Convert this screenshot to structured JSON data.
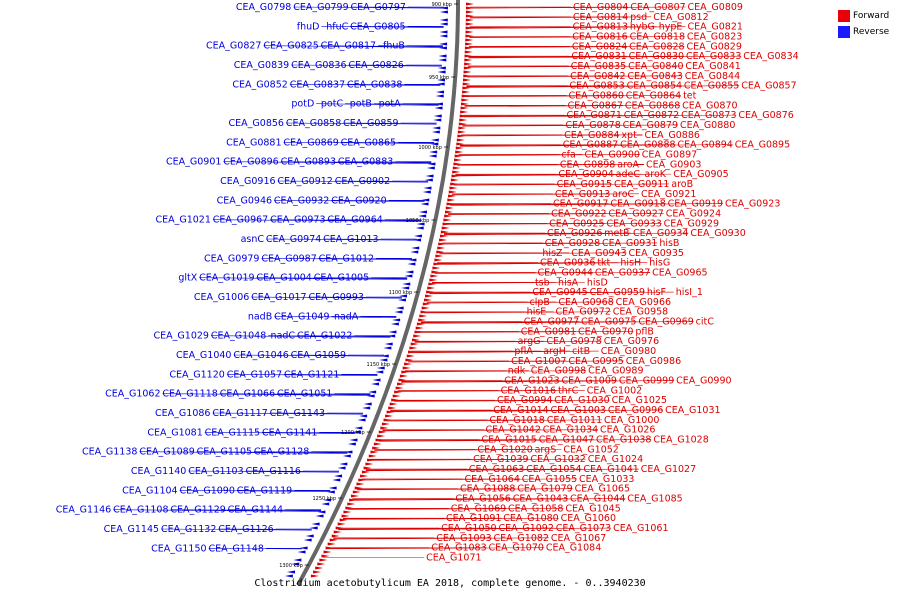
{
  "title": "Clostridium acetobutylicum EA 2018, complete genome. - 0..3940230",
  "legend": {
    "forward_label": "Forward",
    "forward_color": "#e8000b",
    "reverse_label": "Reverse",
    "reverse_color": "#1a1aff"
  },
  "colors": {
    "forward": "#dd0000",
    "reverse": "#0000dd",
    "axis": "#666666"
  },
  "ticks": [
    "900 kbp",
    "950 kbp",
    "1000 kbp",
    "1050 kbp",
    "1100 kbp",
    "1150 kbp",
    "1200 kbp",
    "1250 kbp",
    "1300 kbp"
  ],
  "reverse_labels": [
    "CEA_G0797",
    "CEA_G0799",
    "CEA_G0798",
    "CEA_G0805",
    "hfuC",
    "fhuD",
    "fhuB",
    "CEA_G0817",
    "CEA_G0825",
    "CEA_G0827",
    "CEA_G0826",
    "CEA_G0836",
    "CEA_G0839",
    "CEA_G0838",
    "CEA_G0837",
    "CEA_G0852",
    "potA",
    "potB",
    "potC",
    "potD",
    "CEA_G0859",
    "CEA_G0858",
    "CEA_G0856",
    "CEA_G0865",
    "CEA_G0869",
    "CEA_G0881",
    "CEA_G0883",
    "CEA_G0893",
    "CEA_G0896",
    "CEA_G0901",
    "CEA_G0902",
    "CEA_G0912",
    "CEA_G0916",
    "CEA_G0920",
    "CEA_G0932",
    "CEA_G0946",
    "CEA_G0964",
    "CEA_G0973",
    "CEA_G0967",
    "CEA_G1021",
    "CEA_G1013",
    "CEA_G0974",
    "asnC",
    "CEA_G1012",
    "CEA_G0987",
    "CEA_G0979",
    "CEA_G1005",
    "CEA_G1004",
    "CEA_G1019",
    "gltX",
    "CEA_G0993",
    "CEA_G1017",
    "CEA_G1006",
    "nadA",
    "CEA_G1049",
    "nadB",
    "CEA_G1022",
    "nadC",
    "CEA_G1048",
    "CEA_G1029",
    "CEA_G1059",
    "CEA_G1046",
    "CEA_G1040",
    "CEA_G1121",
    "CEA_G1057",
    "CEA_G1120",
    "CEA_G1051",
    "CEA_G1066",
    "CEA_G1118",
    "CEA_G1062",
    "CEA_G1143",
    "CEA_G1117",
    "CEA_G1086",
    "CEA_G1141",
    "CEA_G1115",
    "CEA_G1081",
    "CEA_G1128",
    "CEA_G1105",
    "CEA_G1089",
    "CEA_G1138",
    "CEA_G1116",
    "CEA_G1103",
    "CEA_G1140",
    "CEA_G1119",
    "CEA_G1090",
    "CEA_G1104",
    "CEA_G1144",
    "CEA_G1129",
    "CEA_G1108",
    "CEA_G1146",
    "CEA_G1126",
    "CEA_G1132",
    "CEA_G1145",
    "CEA_G1148",
    "CEA_G1150"
  ],
  "forward_labels": [
    "CEA_G0804",
    "CEA_G0807",
    "CEA_G0809",
    "CEA_G0814",
    "psd",
    "CEA_G0812",
    "CEA_G0813",
    "hybG",
    "hypE",
    "CEA_G0821",
    "CEA_G0816",
    "CEA_G0818",
    "CEA_G0823",
    "CEA_G0824",
    "CEA_G0828",
    "CEA_G0829",
    "CEA_G0831",
    "CEA_G0830",
    "CEA_G0833",
    "CEA_G0834",
    "CEA_G0835",
    "CEA_G0840",
    "CEA_G0841",
    "CEA_G0842",
    "CEA_G0843",
    "CEA_G0844",
    "CEA_G0853",
    "CEA_G0854",
    "CEA_G0855",
    "CEA_G0857",
    "CEA_G0860",
    "CEA_G0864",
    "tet",
    "CEA_G0867",
    "CEA_G0868",
    "CEA_G0870",
    "CEA_G0871",
    "CEA_G0872",
    "CEA_G0873",
    "CEA_G0876",
    "CEA_G0878",
    "CEA_G0879",
    "CEA_G0880",
    "CEA_G0884",
    "xpt",
    "CEA_G0886",
    "CEA_G0887",
    "CEA_G0888",
    "CEA_G0894",
    "CEA_G0895",
    "cfa",
    "CEA_G0900",
    "CEA_G0897",
    "CEA_G0898",
    "aroA",
    "CEA_G0903",
    "CEA_G0904",
    "adeC",
    "aroK",
    "CEA_G0905",
    "CEA_G0915",
    "CEA_G0911",
    "aroB",
    "CEA_G0913",
    "aroC",
    "CEA_G0921",
    "CEA_G0917",
    "CEA_G0918",
    "CEA_G0919",
    "CEA_G0923",
    "CEA_G0922",
    "CEA_G0927",
    "CEA_G0924",
    "CEA_G0925",
    "CEA_G0933",
    "CEA_G0929",
    "CEA_G0926",
    "metB",
    "CEA_G0934",
    "CEA_G0930",
    "CEA_G0928",
    "CEA_G0931",
    "hisB",
    "hisZ",
    "CEA_G0943",
    "CEA_G0935",
    "CEA_G0936",
    "tkt",
    "hisH",
    "hisG",
    "CEA_G0944",
    "CEA_G0937",
    "CEA_G0965",
    "tsb",
    "hisA",
    "hisD",
    "CEA_G0945",
    "CEA_G0959",
    "hisF",
    "hisI_1",
    "clpB",
    "CEA_G0968",
    "CEA_G0966",
    "hisE",
    "CEA_G0972",
    "CEA_G0958",
    "CEA_G0977",
    "CEA_G0975",
    "CEA_G0969",
    "citC",
    "CEA_G0981",
    "CEA_G0970",
    "pflB",
    "argG",
    "CEA_G0978",
    "CEA_G0976",
    "pflA",
    "argH",
    "citB",
    "CEA_G0980",
    "CEA_G1007",
    "CEA_G0995",
    "CEA_G0986",
    "ndk",
    "CEA_G0998",
    "CEA_G0989",
    "CEA_G1023",
    "CEA_G1009",
    "CEA_G0999",
    "CEA_G0990",
    "CEA_G1016",
    "thrC",
    "CEA_G1002",
    "CEA_G0994",
    "CEA_G1030",
    "CEA_G1025",
    "CEA_G1014",
    "CEA_G1003",
    "CEA_G0996",
    "CEA_G1031",
    "CEA_G1018",
    "CEA_G1011",
    "CEA_G1000",
    "CEA_G1042",
    "CEA_G1034",
    "CEA_G1026",
    "CEA_G1015",
    "CEA_G1047",
    "CEA_G1038",
    "CEA_G1028",
    "CEA_G1020",
    "argS",
    "CEA_G1052",
    "CEA_G1039",
    "CEA_G1032",
    "CEA_G1024",
    "CEA_G1063",
    "CEA_G1054",
    "CEA_G1041",
    "CEA_G1027",
    "CEA_G1064",
    "CEA_G1055",
    "CEA_G1033",
    "CEA_G1088",
    "CEA_G1079",
    "CEA_G1065",
    "CEA_G1056",
    "CEA_G1043",
    "CEA_G1044",
    "CEA_G1085",
    "CEA_G1069",
    "CEA_G1058",
    "CEA_G1045",
    "CEA_G1091",
    "CEA_G1080",
    "CEA_G1060",
    "CEA_G1050",
    "CEA_G1092",
    "CEA_G1073",
    "CEA_G1061",
    "CEA_G1093",
    "CEA_G1082",
    "CEA_G1067",
    "CEA_G1083",
    "CEA_G1070",
    "CEA_G1084",
    "CEA_G1071"
  ]
}
